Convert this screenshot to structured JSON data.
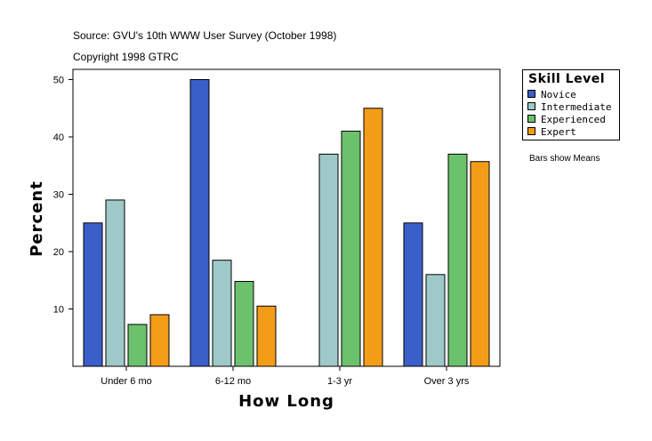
{
  "header": {
    "source": "Source: GVU's 10th WWW User Survey (October 1998)",
    "copyright": "Copyright 1998 GTRC"
  },
  "legend": {
    "title": "Skill Level",
    "items": [
      {
        "label": "Novice",
        "color": "#3a5fc8"
      },
      {
        "label": "Intermediate",
        "color": "#9ec9c8"
      },
      {
        "label": "Experienced",
        "color": "#6cc26c"
      },
      {
        "label": "Expert",
        "color": "#f39c17"
      }
    ]
  },
  "note": "Bars show Means",
  "chart_data": {
    "type": "bar",
    "title": "",
    "xlabel": "How Long",
    "ylabel": "Percent",
    "categories": [
      "Under 6 mo",
      "6-12 mo",
      "1-3 yr",
      "Over 3 yrs"
    ],
    "series": [
      {
        "name": "Novice",
        "values": [
          25,
          50,
          null,
          25
        ]
      },
      {
        "name": "Intermediate",
        "values": [
          29,
          18.5,
          37,
          16
        ]
      },
      {
        "name": "Experienced",
        "values": [
          7.3,
          14.8,
          41,
          37
        ]
      },
      {
        "name": "Expert",
        "values": [
          9,
          10.5,
          45,
          35.7
        ]
      }
    ],
    "ylim": [
      0,
      50
    ],
    "yticks": [
      10,
      20,
      30,
      40,
      50
    ],
    "grid": false
  }
}
